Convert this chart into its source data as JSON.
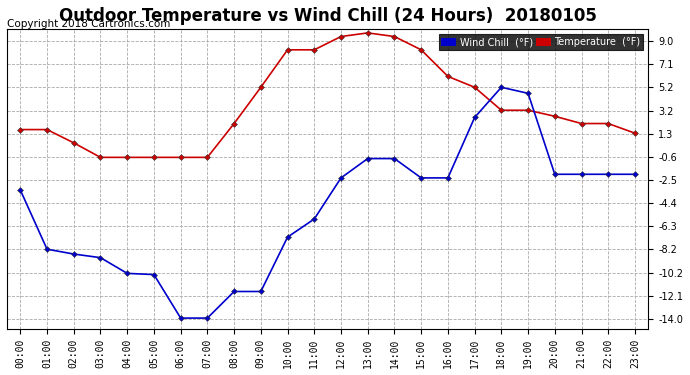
{
  "title": "Outdoor Temperature vs Wind Chill (24 Hours)  20180105",
  "copyright": "Copyright 2018 Cartronics.com",
  "background_color": "#ffffff",
  "grid_color": "#aaaaaa",
  "hours": [
    "00:00",
    "01:00",
    "02:00",
    "03:00",
    "04:00",
    "05:00",
    "06:00",
    "07:00",
    "08:00",
    "09:00",
    "10:00",
    "11:00",
    "12:00",
    "13:00",
    "14:00",
    "15:00",
    "16:00",
    "17:00",
    "18:00",
    "19:00",
    "20:00",
    "21:00",
    "22:00",
    "23:00"
  ],
  "temperature": [
    1.7,
    1.7,
    0.6,
    -0.6,
    -0.6,
    -0.6,
    -0.6,
    -0.6,
    2.2,
    5.2,
    8.3,
    8.3,
    9.4,
    9.7,
    9.4,
    8.3,
    6.1,
    5.2,
    3.3,
    3.3,
    2.8,
    2.2,
    2.2,
    1.4
  ],
  "wind_chill": [
    -3.3,
    -8.2,
    -8.6,
    -8.9,
    -10.2,
    -10.3,
    -13.9,
    -13.9,
    -11.7,
    -11.7,
    -7.2,
    -5.7,
    -2.3,
    -0.7,
    -0.7,
    -2.3,
    -2.3,
    2.7,
    5.2,
    4.7,
    -2.0,
    -2.0,
    -2.0,
    -2.0
  ],
  "temp_color": "#cc0000",
  "wind_chill_color": "#0000cc",
  "marker": "D",
  "marker_size": 3,
  "ytick_values": [
    -14.0,
    -12.1,
    -10.2,
    -8.2,
    -6.3,
    -4.4,
    -2.5,
    -0.6,
    1.3,
    3.2,
    5.2,
    7.1,
    9.0
  ],
  "ylim": [
    -14.8,
    10.0
  ],
  "legend_wc_label": "Wind Chill  (°F)",
  "legend_temp_label": "Temperature  (°F)",
  "legend_wc_color": "#0000cc",
  "legend_temp_color": "#cc0000",
  "title_fontsize": 12,
  "tick_fontsize": 7,
  "copyright_fontsize": 7.5
}
